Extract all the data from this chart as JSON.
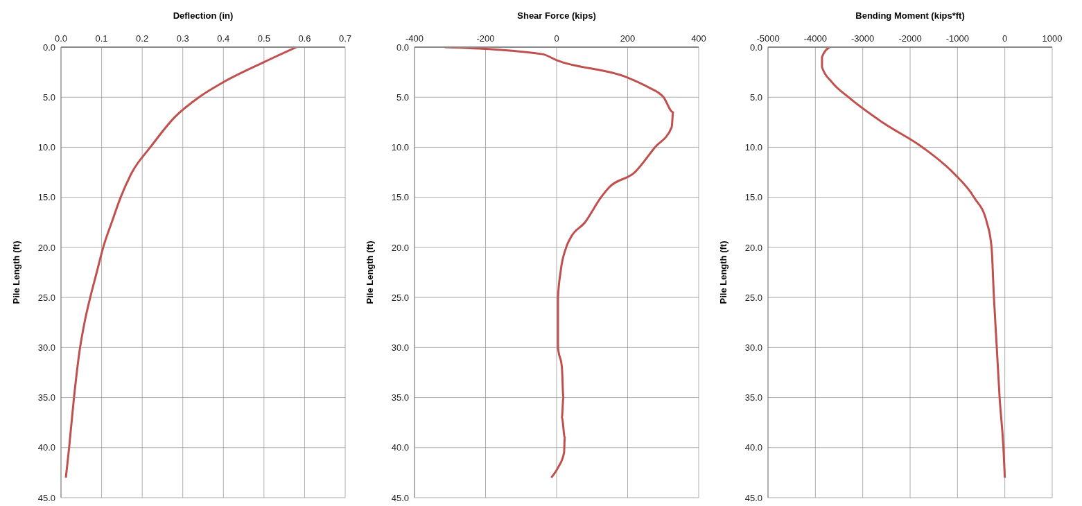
{
  "chart_data": [
    {
      "type": "line",
      "xlabel": "Deflection (in)",
      "ylabel": "Pile Length (ft)",
      "xlim": [
        0,
        0.7
      ],
      "xticks": [
        {
          "value": 0,
          "label": "0.0"
        },
        0.1,
        0.2,
        0.3,
        0.4,
        0.5,
        0.6,
        0.7
      ],
      "ylim": [
        45,
        0
      ],
      "yticks": [
        {
          "value": 0,
          "label": "0.0"
        },
        {
          "value": 5,
          "label": "5.0"
        },
        {
          "value": 10,
          "label": "10.0"
        },
        {
          "value": 15,
          "label": "15.0"
        },
        {
          "value": 20,
          "label": "20.0"
        },
        {
          "value": 25,
          "label": "25.0"
        },
        {
          "value": 30,
          "label": "30.0"
        },
        {
          "value": 35,
          "label": "35.0"
        },
        {
          "value": 40,
          "label": "40.0"
        },
        {
          "value": 45,
          "label": "45.0"
        }
      ],
      "grid": true,
      "marker": "none",
      "line_style": "solid",
      "series": [
        {
          "color": "#c0504d",
          "x": [
            0.58,
            0.5,
            0.4,
            0.34,
            0.28,
            0.22,
            0.175,
            0.147,
            0.125,
            0.104,
            0.088,
            0.072,
            0.058,
            0.047,
            0.032,
            0.02,
            0.012
          ],
          "values": [
            0,
            1.5,
            3.5,
            5,
            7,
            10,
            12.5,
            15,
            17.5,
            20,
            22.5,
            25,
            27.5,
            30,
            35,
            40,
            43
          ]
        }
      ]
    },
    {
      "type": "line",
      "xlabel": "Shear Force (kips)",
      "ylabel": "Pile Length (ft)",
      "xlim": [
        -400,
        400
      ],
      "xticks": [
        -400,
        -200,
        0,
        200,
        400
      ],
      "ylim": [
        45,
        0
      ],
      "yticks": [
        {
          "value": 0,
          "label": "0.0"
        },
        {
          "value": 5,
          "label": "5.0"
        },
        {
          "value": 10,
          "label": "10.0"
        },
        {
          "value": 15,
          "label": "15.0"
        },
        {
          "value": 20,
          "label": "20.0"
        },
        {
          "value": 25,
          "label": "25.0"
        },
        {
          "value": 30,
          "label": "30.0"
        },
        {
          "value": 35,
          "label": "35.0"
        },
        {
          "value": 40,
          "label": "40.0"
        },
        {
          "value": 45,
          "label": "45.0"
        }
      ],
      "grid": true,
      "marker": "none",
      "line_style": "solid",
      "series": [
        {
          "color": "#c0504d",
          "x": [
            -315,
            -40,
            0,
            197,
            258,
            301,
            328,
            324,
            277,
            220,
            148,
            125,
            80,
            40,
            27,
            11,
            4,
            4,
            15,
            19,
            15,
            23,
            21,
            4,
            -15
          ],
          "values": [
            0,
            0.7,
            1.3,
            3,
            4,
            5,
            6.5,
            8,
            10,
            12.5,
            14,
            15,
            17.5,
            19,
            20,
            22.5,
            25,
            30,
            32,
            35,
            37,
            39,
            40.5,
            42,
            43
          ]
        }
      ]
    },
    {
      "type": "line",
      "xlabel": "Bending Moment (kips*ft)",
      "ylabel": "Pile Length (ft)",
      "xlim": [
        -5000,
        1000
      ],
      "xticks": [
        -5000,
        -4000,
        -3000,
        -2000,
        -1000,
        0,
        1000
      ],
      "ylim": [
        45,
        0
      ],
      "yticks": [
        {
          "value": 0,
          "label": "0.0"
        },
        {
          "value": 5,
          "label": "5.0"
        },
        {
          "value": 10,
          "label": "10.0"
        },
        {
          "value": 15,
          "label": "15.0"
        },
        {
          "value": 20,
          "label": "20.0"
        },
        {
          "value": 25,
          "label": "25.0"
        },
        {
          "value": 30,
          "label": "30.0"
        },
        {
          "value": 35,
          "label": "35.0"
        },
        {
          "value": 40,
          "label": "40.0"
        },
        {
          "value": 45,
          "label": "45.0"
        }
      ],
      "grid": true,
      "marker": "none",
      "line_style": "solid",
      "series": [
        {
          "color": "#c0504d",
          "x": [
            -3700,
            -3860,
            -3860,
            -3650,
            -3300,
            -2590,
            -1740,
            -1100,
            -650,
            -380,
            -280,
            -230,
            -170,
            -110,
            -30,
            0
          ],
          "values": [
            0,
            1,
            2,
            3.5,
            5,
            7.5,
            10,
            12.5,
            15,
            17.5,
            20,
            25,
            30,
            35,
            40,
            43
          ]
        }
      ]
    }
  ]
}
